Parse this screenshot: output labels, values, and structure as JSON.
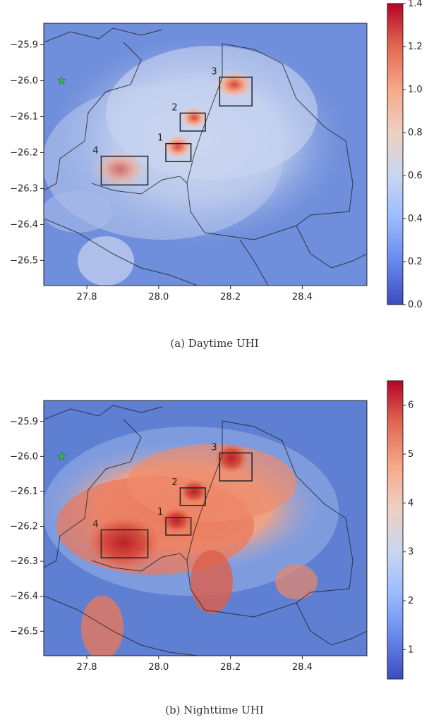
{
  "colormap": {
    "name": "RdBu_r",
    "stops": [
      "#3b4cc0",
      "#6788ee",
      "#9abbff",
      "#c9d7f0",
      "#edd1c2",
      "#f7a889",
      "#e26952",
      "#b40426"
    ]
  },
  "marker": {
    "icon": "green-star-icon",
    "color": "#3cb44b",
    "lon": 27.73,
    "lat": -26.0
  },
  "panels": [
    {
      "id": "a",
      "caption": "(a) Daytime UHI",
      "extent": {
        "lon": [
          27.68,
          28.58
        ],
        "lat": [
          -26.57,
          -25.84
        ]
      },
      "x_ticks": [
        "27.8",
        "28.0",
        "28.2",
        "28.4"
      ],
      "y_ticks": [
        "−25.9",
        "−26.0",
        "−26.1",
        "−26.2",
        "−26.3",
        "−26.4",
        "−26.5"
      ],
      "colorbar": {
        "min": 0.0,
        "max": 1.4,
        "ticks": [
          "0.0",
          "0.2",
          "0.4",
          "0.6",
          "0.8",
          "1.0",
          "1.2",
          "1.4"
        ]
      },
      "boxes": [
        {
          "label": "1",
          "lon": [
            28.02,
            28.09
          ],
          "lat": [
            -26.225,
            -26.175
          ]
        },
        {
          "label": "2",
          "lon": [
            28.06,
            28.13
          ],
          "lat": [
            -26.14,
            -26.09
          ]
        },
        {
          "label": "3",
          "lon": [
            28.17,
            28.26
          ],
          "lat": [
            -26.07,
            -25.99
          ]
        },
        {
          "label": "4",
          "lon": [
            27.84,
            27.97
          ],
          "lat": [
            -26.29,
            -26.21
          ]
        }
      ]
    },
    {
      "id": "b",
      "caption": "(b) Nighttime UHI",
      "extent": {
        "lon": [
          27.68,
          28.58
        ],
        "lat": [
          -26.57,
          -25.84
        ]
      },
      "x_ticks": [
        "27.8",
        "28.0",
        "28.2",
        "28.4"
      ],
      "y_ticks": [
        "−25.9",
        "−26.0",
        "−26.1",
        "−26.2",
        "−26.3",
        "−26.4",
        "−26.5"
      ],
      "colorbar": {
        "min": 0.4,
        "max": 6.5,
        "ticks": [
          "1",
          "2",
          "3",
          "4",
          "5",
          "6"
        ]
      },
      "boxes": [
        {
          "label": "1",
          "lon": [
            28.02,
            28.09
          ],
          "lat": [
            -26.225,
            -26.175
          ]
        },
        {
          "label": "2",
          "lon": [
            28.06,
            28.13
          ],
          "lat": [
            -26.14,
            -26.09
          ]
        },
        {
          "label": "3",
          "lon": [
            28.17,
            28.26
          ],
          "lat": [
            -26.07,
            -25.99
          ]
        },
        {
          "label": "4",
          "lon": [
            27.84,
            27.97
          ],
          "lat": [
            -26.29,
            -26.21
          ]
        }
      ]
    }
  ]
}
